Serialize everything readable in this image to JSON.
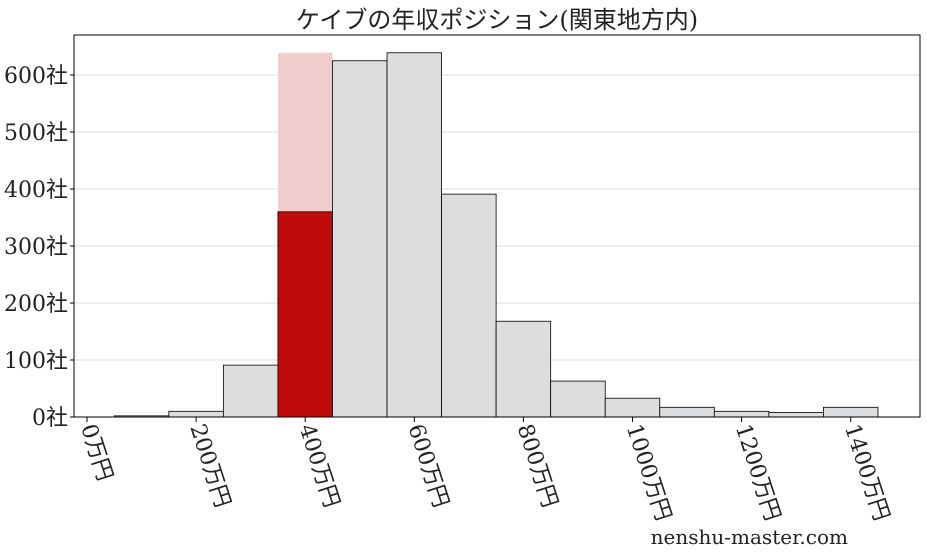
{
  "chart_data": {
    "type": "bar",
    "title": "ケイブの年収ポジション(関東地方内)",
    "xlabel": "",
    "ylabel": "",
    "x_unit": "万円",
    "y_unit": "社",
    "bin_width": 100,
    "bin_centers": [
      100,
      200,
      300,
      400,
      500,
      600,
      700,
      800,
      900,
      1000,
      1100,
      1200,
      1300,
      1400
    ],
    "values": [
      2,
      10,
      91,
      360,
      625,
      639,
      391,
      168,
      63,
      33,
      17,
      10,
      8,
      17
    ],
    "highlight": {
      "bin_center": 400,
      "value": 360,
      "background_value": 639,
      "color": "#c00b0b",
      "background_color": "#f0cccc"
    },
    "bar_color": "#dcdddf",
    "xticks": [
      0,
      200,
      400,
      600,
      800,
      1000,
      1200,
      1400
    ],
    "xtick_labels": [
      "0万円",
      "200万円",
      "400万円",
      "600万円",
      "800万円",
      "1000万円",
      "1200万円",
      "1400万円"
    ],
    "yticks": [
      0,
      100,
      200,
      300,
      400,
      500,
      600
    ],
    "ytick_labels": [
      "0社",
      "100社",
      "200社",
      "300社",
      "400社",
      "500社",
      "600社"
    ],
    "xlim": [
      -20,
      1530
    ],
    "ylim": [
      0,
      670
    ],
    "grid": "horizontal"
  },
  "watermark": "nenshu-master.com"
}
